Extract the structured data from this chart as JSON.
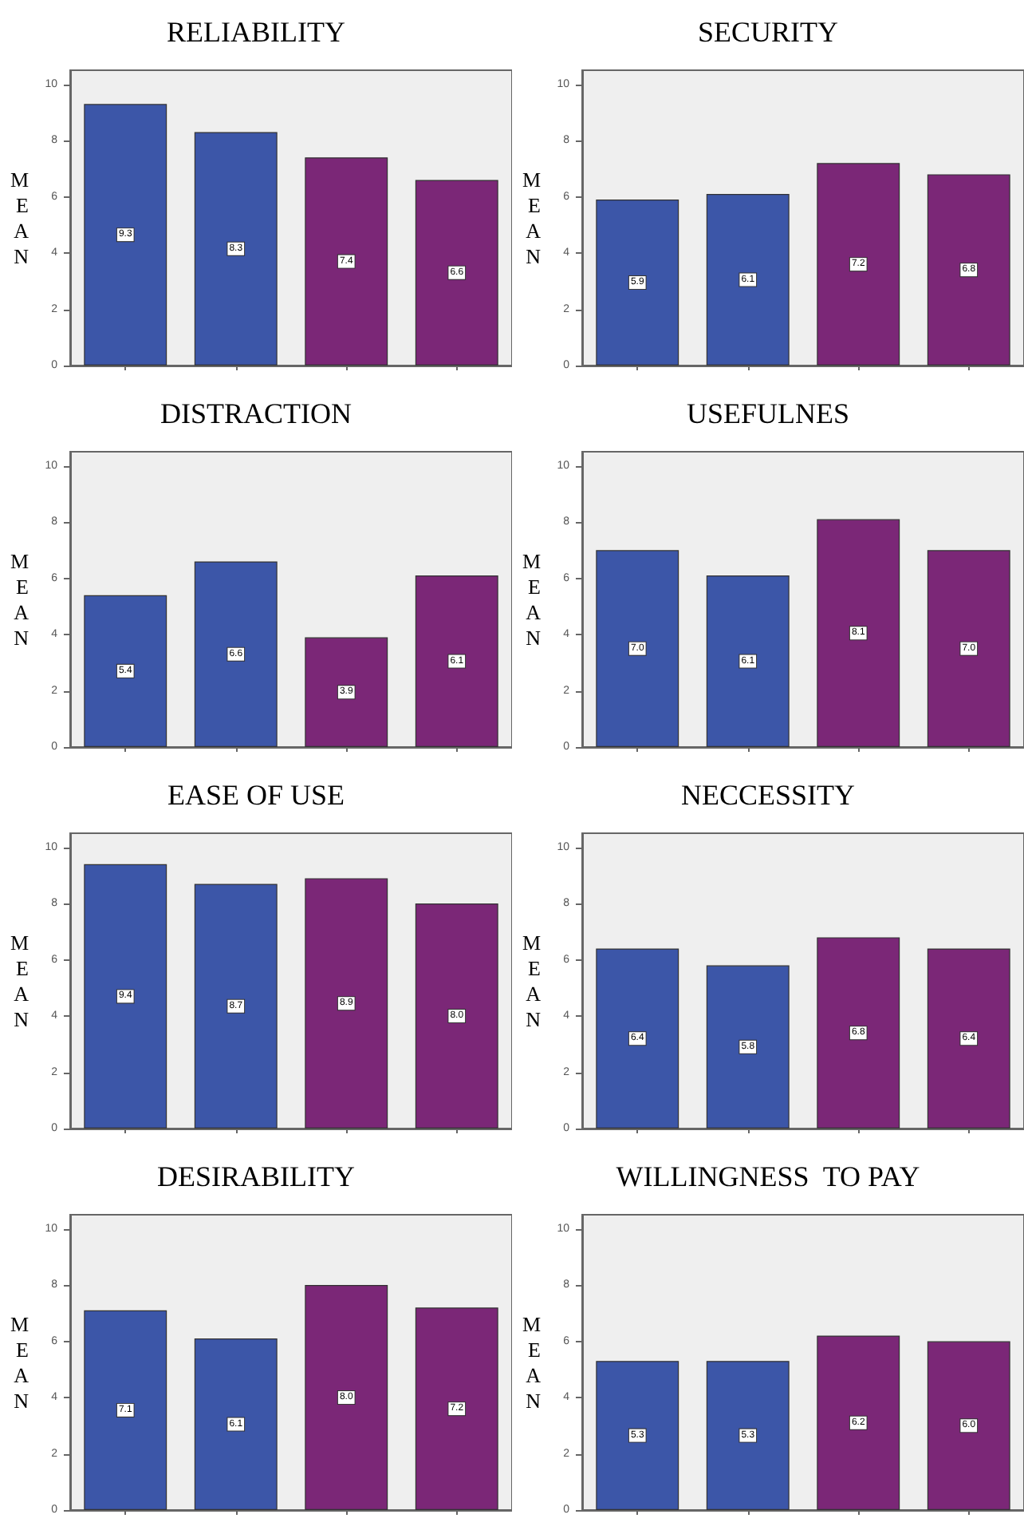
{
  "chart_data": [
    {
      "type": "bar",
      "title": "RELIABILITY",
      "ylabel": "MEAN",
      "categories": [
        null,
        null,
        null,
        null
      ],
      "values": [
        9.3,
        8.3,
        7.4,
        6.6
      ],
      "value_labels": [
        "9.3",
        "8.3",
        "7.4",
        "6.6"
      ],
      "colors": [
        "#3c56a8",
        "#3c56a8",
        "#7b2777",
        "#7b2777"
      ],
      "ylim": [
        0,
        10.5
      ],
      "yticks": [
        0,
        2,
        4,
        6,
        8,
        10
      ],
      "grid": false
    },
    {
      "type": "bar",
      "title": "SECURITY",
      "ylabel": "MEAN",
      "categories": [
        null,
        null,
        null,
        null
      ],
      "values": [
        5.9,
        6.1,
        7.2,
        6.8
      ],
      "value_labels": [
        "5.9",
        "6.1",
        "7.2",
        "6.8"
      ],
      "colors": [
        "#3c56a8",
        "#3c56a8",
        "#7b2777",
        "#7b2777"
      ],
      "ylim": [
        0,
        10.5
      ],
      "yticks": [
        0,
        2,
        4,
        6,
        8,
        10
      ],
      "grid": false
    },
    {
      "type": "bar",
      "title": "DISTRACTION",
      "ylabel": "MEAN",
      "categories": [
        null,
        null,
        null,
        null
      ],
      "values": [
        5.4,
        6.6,
        3.9,
        6.1
      ],
      "value_labels": [
        "5.4",
        "6.6",
        "3.9",
        "6.1"
      ],
      "colors": [
        "#3c56a8",
        "#3c56a8",
        "#7b2777",
        "#7b2777"
      ],
      "ylim": [
        0,
        10.5
      ],
      "yticks": [
        0,
        2,
        4,
        6,
        8,
        10
      ],
      "grid": false
    },
    {
      "type": "bar",
      "title": "USEFULNES",
      "ylabel": "MEAN",
      "categories": [
        null,
        null,
        null,
        null
      ],
      "values": [
        7.0,
        6.1,
        8.1,
        7.0
      ],
      "value_labels": [
        "7.0",
        "6.1",
        "8.1",
        "7.0"
      ],
      "colors": [
        "#3c56a8",
        "#3c56a8",
        "#7b2777",
        "#7b2777"
      ],
      "ylim": [
        0,
        10.5
      ],
      "yticks": [
        0,
        2,
        4,
        6,
        8,
        10
      ],
      "grid": false
    },
    {
      "type": "bar",
      "title": "EASE OF USE",
      "ylabel": "MEAN",
      "categories": [
        null,
        null,
        null,
        null
      ],
      "values": [
        9.4,
        8.7,
        8.9,
        8.0
      ],
      "value_labels": [
        "9.4",
        "8.7",
        "8.9",
        "8.0"
      ],
      "colors": [
        "#3c56a8",
        "#3c56a8",
        "#7b2777",
        "#7b2777"
      ],
      "ylim": [
        0,
        10.5
      ],
      "yticks": [
        0,
        2,
        4,
        6,
        8,
        10
      ],
      "grid": false
    },
    {
      "type": "bar",
      "title": "NECCESSITY",
      "ylabel": "MEAN",
      "categories": [
        null,
        null,
        null,
        null
      ],
      "values": [
        6.4,
        5.8,
        6.8,
        6.4
      ],
      "value_labels": [
        "6.4",
        "5.8",
        "6.8",
        "6.4"
      ],
      "colors": [
        "#3c56a8",
        "#3c56a8",
        "#7b2777",
        "#7b2777"
      ],
      "ylim": [
        0,
        10.5
      ],
      "yticks": [
        0,
        2,
        4,
        6,
        8,
        10
      ],
      "grid": false
    },
    {
      "type": "bar",
      "title": "DESIRABILITY",
      "ylabel": "MEAN",
      "categories": [
        null,
        null,
        null,
        null
      ],
      "values": [
        7.1,
        6.1,
        8.0,
        7.2
      ],
      "value_labels": [
        "7.1",
        "6.1",
        "8.0",
        "7.2"
      ],
      "colors": [
        "#3c56a8",
        "#3c56a8",
        "#7b2777",
        "#7b2777"
      ],
      "ylim": [
        0,
        10.5
      ],
      "yticks": [
        0,
        2,
        4,
        6,
        8,
        10
      ],
      "grid": false
    },
    {
      "type": "bar",
      "title": "WILLINGNESS  TO PAY",
      "ylabel": "MEAN",
      "categories": [
        null,
        null,
        null,
        null
      ],
      "values": [
        5.3,
        5.3,
        6.2,
        6.0
      ],
      "value_labels": [
        "5.3",
        "5.3",
        "6.2",
        "6.0"
      ],
      "colors": [
        "#3c56a8",
        "#3c56a8",
        "#7b2777",
        "#7b2777"
      ],
      "ylim": [
        0,
        10.5
      ],
      "yticks": [
        0,
        2,
        4,
        6,
        8,
        10
      ],
      "grid": false
    }
  ]
}
